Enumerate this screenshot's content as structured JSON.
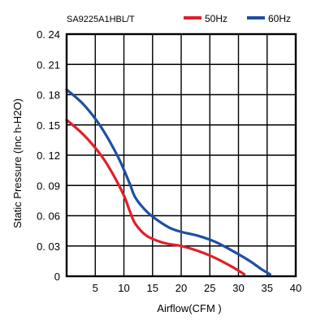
{
  "chart_data": {
    "type": "line",
    "title": "SA9225A1HBL/T",
    "xlabel": "Airflow(CFM )",
    "ylabel": "Static Pressure (Inc h-H2O)",
    "xlim": [
      0,
      40
    ],
    "ylim": [
      0,
      0.24
    ],
    "x_ticks": [
      5,
      10,
      15,
      20,
      25,
      30,
      35,
      40
    ],
    "x_tick_labels": [
      "5",
      "10",
      "15",
      "20",
      "25",
      "30",
      "35",
      "40"
    ],
    "y_ticks": [
      0,
      0.03,
      0.06,
      0.09,
      0.12,
      0.15,
      0.18,
      0.21,
      0.24
    ],
    "y_tick_labels": [
      "0",
      "0. 03",
      "0. 06",
      "0. 09",
      "0. 12",
      "0. 15",
      "0. 18",
      "0. 21",
      "0. 24"
    ],
    "grid": true,
    "legend_position": "top-right",
    "series": [
      {
        "name": "50Hz",
        "color": "#e0202a",
        "x": [
          0,
          3,
          6,
          8,
          10,
          11,
          12,
          14,
          17,
          20,
          23,
          26,
          29,
          31
        ],
        "y": [
          0.155,
          0.14,
          0.12,
          0.102,
          0.08,
          0.065,
          0.052,
          0.04,
          0.033,
          0.03,
          0.025,
          0.018,
          0.009,
          0.002
        ]
      },
      {
        "name": "60Hz",
        "color": "#1f4fa3",
        "x": [
          0,
          3,
          6,
          9,
          11,
          12,
          14,
          16,
          18,
          20,
          23,
          26,
          29,
          32,
          34,
          35.5
        ],
        "y": [
          0.185,
          0.17,
          0.148,
          0.118,
          0.092,
          0.078,
          0.064,
          0.055,
          0.048,
          0.044,
          0.04,
          0.034,
          0.025,
          0.015,
          0.007,
          0.002
        ]
      }
    ]
  }
}
